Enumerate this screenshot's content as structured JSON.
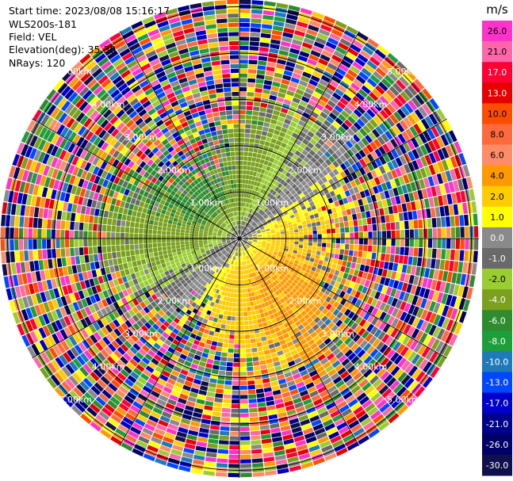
{
  "header": {
    "start_time": "Start time: 2023/08/08 15:16:17",
    "instrument": "WLS200s-181",
    "field": "Field: VEL",
    "elevation": "Elevation(deg): 35.30",
    "nrays": "NRays: 120"
  },
  "chart_data": {
    "type": "heatmap",
    "projection": "polar-ppi",
    "field": "VEL",
    "units": "m/s",
    "elevation_deg": 35.3,
    "n_rays": 120,
    "range_rings_km": [
      1.0,
      2.0,
      3.0,
      4.0,
      5.0
    ],
    "ring_labels": [
      "1.00km",
      "2.00km",
      "3.00km",
      "4.00km",
      "5.00km"
    ],
    "colorbar": {
      "title": "m/s",
      "ticks": [
        "26.0",
        "21.0",
        "17.0",
        "13.0",
        "10.0",
        "8.0",
        "6.0",
        "4.0",
        "2.0",
        "1.0",
        "0.0",
        "-1.0",
        "-2.0",
        "-4.0",
        "-6.0",
        "-8.0",
        "-10.0",
        "-13.0",
        "-17.0",
        "-21.0",
        "-26.0",
        "-30.0"
      ],
      "colors": [
        "#ff33cc",
        "#ff66aa",
        "#ff0033",
        "#e60000",
        "#ff4d00",
        "#ff6a3d",
        "#ff8c66",
        "#ff9900",
        "#ffcc00",
        "#ffff00",
        "#8a8a8a",
        "#6a6a6a",
        "#9acd32",
        "#7aa01e",
        "#2e8b2e",
        "#1e9e3a",
        "#1e7ab8",
        "#0047ff",
        "#0000cc",
        "#00008b",
        "#000066",
        "#10104d"
      ]
    }
  }
}
